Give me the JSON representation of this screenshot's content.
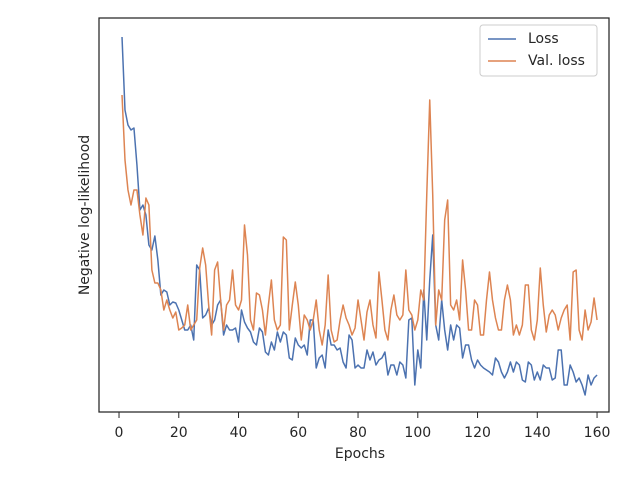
{
  "chart_data": {
    "type": "line",
    "xlabel": "Epochs",
    "ylabel": "Negative log-likelihood",
    "x": [
      1,
      2,
      3,
      4,
      5,
      6,
      7,
      8,
      9,
      10,
      11,
      12,
      13,
      14,
      15,
      16,
      17,
      18,
      19,
      20,
      21,
      22,
      23,
      24,
      25,
      26,
      27,
      28,
      29,
      30,
      31,
      32,
      33,
      34,
      35,
      36,
      37,
      38,
      39,
      40,
      41,
      42,
      43,
      44,
      45,
      46,
      47,
      48,
      49,
      50,
      51,
      52,
      53,
      54,
      55,
      56,
      57,
      58,
      59,
      60,
      61,
      62,
      63,
      64,
      65,
      66,
      67,
      68,
      69,
      70,
      71,
      72,
      73,
      74,
      75,
      76,
      77,
      78,
      79,
      80,
      81,
      82,
      83,
      84,
      85,
      86,
      87,
      88,
      89,
      90,
      91,
      92,
      93,
      94,
      95,
      96,
      97,
      98,
      99,
      100,
      101,
      102,
      103,
      104,
      105,
      106,
      107,
      108,
      109,
      110,
      111,
      112,
      113,
      114,
      115,
      116,
      117,
      118,
      119,
      120,
      121,
      122,
      123,
      124,
      125,
      126,
      127,
      128,
      129,
      130,
      131,
      132,
      133,
      134,
      135,
      136,
      137,
      138,
      139,
      140,
      141,
      142,
      143,
      144,
      145,
      146,
      147,
      148,
      149,
      150,
      151,
      152,
      153,
      154,
      155,
      156,
      157,
      158,
      159,
      160
    ],
    "series": [
      {
        "name": "Loss",
        "color": "#4c72b0",
        "values": [
          375,
          302,
          287,
          282,
          284,
          247,
          202,
          207,
          197,
          167,
          162,
          176,
          152,
          117,
          122,
          120,
          107,
          110,
          109,
          102,
          92,
          82,
          82,
          87,
          72,
          147,
          142,
          94,
          97,
          104,
          87,
          92,
          107,
          112,
          77,
          87,
          82,
          82,
          84,
          70,
          102,
          90,
          84,
          80,
          70,
          67,
          84,
          80,
          60,
          57,
          70,
          62,
          80,
          70,
          80,
          77,
          54,
          52,
          74,
          67,
          64,
          67,
          57,
          92,
          92,
          44,
          54,
          57,
          44,
          82,
          67,
          67,
          62,
          64,
          50,
          44,
          77,
          72,
          44,
          47,
          44,
          44,
          62,
          52,
          60,
          47,
          52,
          54,
          60,
          37,
          47,
          47,
          37,
          50,
          47,
          34,
          92,
          94,
          27,
          62,
          44,
          122,
          72,
          132,
          177,
          87,
          72,
          112,
          82,
          62,
          87,
          72,
          87,
          84,
          54,
          67,
          67,
          52,
          44,
          52,
          47,
          44,
          42,
          40,
          37,
          54,
          50,
          40,
          34,
          40,
          50,
          40,
          50,
          47,
          32,
          30,
          50,
          47,
          32,
          40,
          32,
          47,
          44,
          44,
          32,
          34,
          62,
          62,
          27,
          27,
          47,
          40,
          30,
          34,
          27,
          17,
          37,
          27,
          34,
          37
        ]
      },
      {
        "name": "Val. loss",
        "color": "#dd8452",
        "values": [
          317,
          252,
          222,
          207,
          222,
          222,
          197,
          177,
          214,
          207,
          142,
          129,
          129,
          122,
          102,
          112,
          102,
          94,
          100,
          82,
          84,
          87,
          107,
          82,
          87,
          92,
          144,
          164,
          147,
          107,
          77,
          142,
          150,
          112,
          82,
          107,
          112,
          142,
          107,
          102,
          112,
          187,
          157,
          92,
          82,
          119,
          117,
          102,
          77,
          107,
          132,
          92,
          82,
          87,
          175,
          172,
          82,
          107,
          130,
          107,
          72,
          97,
          92,
          82,
          92,
          112,
          82,
          67,
          87,
          137,
          82,
          70,
          72,
          92,
          107,
          94,
          87,
          77,
          84,
          112,
          92,
          72,
          100,
          112,
          87,
          74,
          140,
          112,
          82,
          72,
          102,
          117,
          97,
          92,
          97,
          142,
          102,
          97,
          82,
          92,
          122,
          112,
          217,
          312,
          217,
          87,
          122,
          112,
          192,
          212,
          107,
          102,
          112,
          92,
          152,
          122,
          82,
          82,
          112,
          107,
          77,
          77,
          112,
          140,
          112,
          94,
          82,
          82,
          112,
          127,
          112,
          77,
          87,
          77,
          87,
          127,
          127,
          82,
          72,
          92,
          144,
          107,
          80,
          97,
          102,
          97,
          82,
          94,
          102,
          107,
          72,
          140,
          142,
          82,
          72,
          102,
          82,
          90,
          114,
          92
        ]
      }
    ],
    "xlim": [
      -6.7,
      164
    ],
    "xticks": [
      0,
      20,
      40,
      60,
      80,
      100,
      120,
      140,
      160
    ],
    "ylim": [
      0,
      394
    ],
    "legend": "upper right"
  }
}
